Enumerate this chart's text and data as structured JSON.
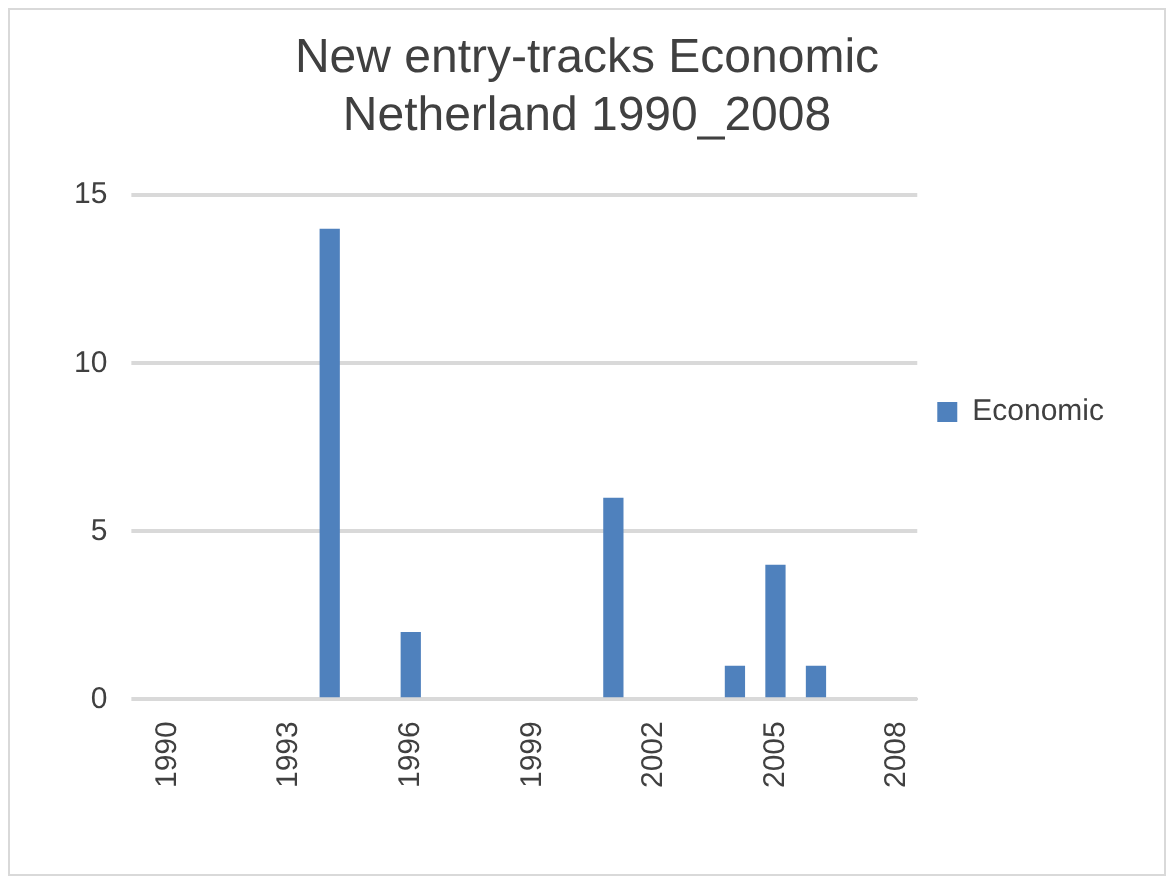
{
  "chart_data": {
    "type": "bar",
    "title": [
      "New entry-tracks Economic",
      "Netherland 1990_2008"
    ],
    "categories": [
      "1990",
      null,
      null,
      "1993",
      null,
      null,
      "1996",
      null,
      null,
      "1999",
      null,
      null,
      "2002",
      null,
      null,
      "2005",
      null,
      null,
      "2008"
    ],
    "series": [
      {
        "name": "Economic",
        "color": "#4f81bd",
        "values": [
          0,
          0,
          0,
          0,
          14,
          0,
          2,
          0,
          0,
          0,
          0,
          6,
          0,
          0,
          1,
          4,
          1,
          0,
          0
        ]
      }
    ],
    "ylim": [
      0,
      15
    ],
    "yticks": [
      0,
      5,
      10,
      15
    ],
    "grid": "y",
    "legend": "right"
  }
}
